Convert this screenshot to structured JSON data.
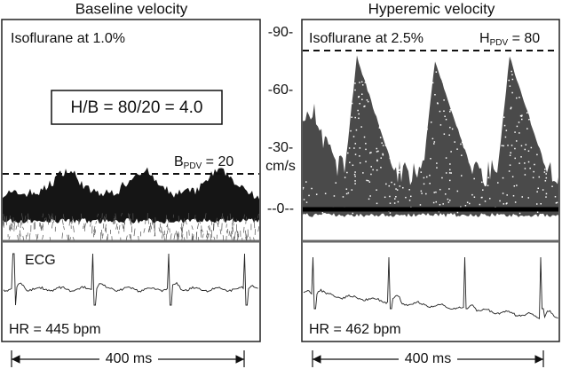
{
  "panels": [
    {
      "title": "Baseline velocity",
      "anesthesia": "Isoflurane at 1.0%",
      "ratio": "H/B = 80/20 = 4.0",
      "pdv_letter": "B",
      "pdv_sub": "PDV",
      "pdv_value": " = 20",
      "ecg_label": "ECG",
      "heart_rate": "HR = 445 bpm",
      "scale": "400 ms"
    },
    {
      "title": "Hyperemic velocity",
      "anesthesia": "Isoflurane at 2.5%",
      "pdv_letter": "H",
      "pdv_sub": "PDV",
      "pdv_value": " = 80",
      "heart_rate": "HR = 462 bpm",
      "scale": "400 ms"
    }
  ],
  "axis": {
    "ticks": [
      "-90-",
      "-60-",
      "-30-",
      "--0--"
    ],
    "unit": "cm/s"
  }
}
